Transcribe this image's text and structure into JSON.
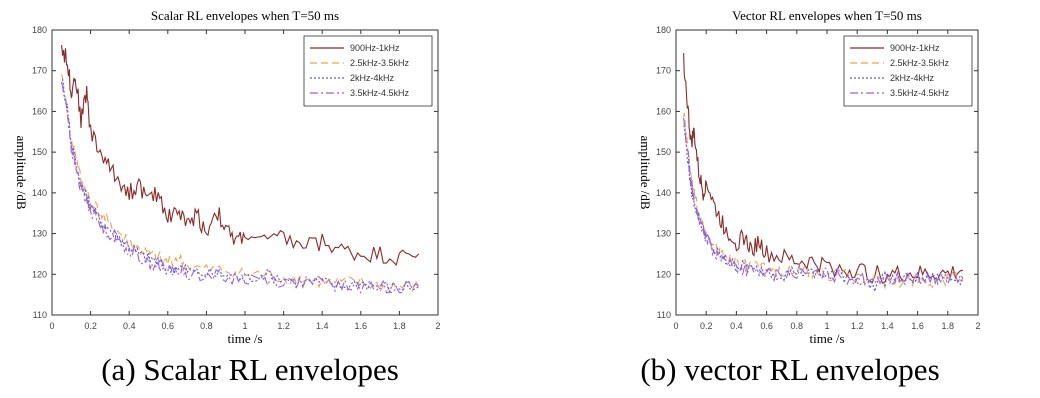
{
  "panels": [
    {
      "caption": "(a) Scalar RL envelopes",
      "chart_data": {
        "type": "line",
        "title": "Scalar RL envelopes when T=50 ms",
        "xlabel": "time /s",
        "ylabel": "amplitude /dB",
        "xlim": [
          0,
          2
        ],
        "ylim": [
          110,
          180
        ],
        "xticks": [
          0,
          0.2,
          0.4,
          0.6,
          0.8,
          1,
          1.2,
          1.4,
          1.6,
          1.8,
          2
        ],
        "yticks": [
          110,
          120,
          130,
          140,
          150,
          160,
          170,
          180
        ],
        "legend_position": "top-right",
        "series": [
          {
            "name": "900Hz-1kHz",
            "color": "#8b2a2a",
            "dash": "solid",
            "x": [
              0.05,
              0.08,
              0.1,
              0.12,
              0.15,
              0.18,
              0.2,
              0.25,
              0.3,
              0.35,
              0.4,
              0.45,
              0.5,
              0.55,
              0.6,
              0.65,
              0.7,
              0.75,
              0.8,
              0.85,
              0.9,
              0.95,
              1.0,
              1.1,
              1.2,
              1.3,
              1.4,
              1.5,
              1.6,
              1.7,
              1.8,
              1.9
            ],
            "y": [
              176,
              172,
              165,
              169,
              158,
              165,
              155,
              150,
              146,
              143,
              140,
              142,
              138,
              140,
              134,
              136,
              132,
              135,
              130,
              136,
              131,
              128,
              130,
              128,
              129,
              127,
              128,
              126,
              125,
              125,
              124,
              125
            ]
          },
          {
            "name": "2.5kHz-3.5kHz",
            "color": "#f0a050",
            "dash": "dashed",
            "x": [
              0.05,
              0.08,
              0.1,
              0.12,
              0.15,
              0.18,
              0.2,
              0.25,
              0.3,
              0.35,
              0.4,
              0.45,
              0.5,
              0.55,
              0.6,
              0.65,
              0.7,
              0.8,
              0.9,
              1.0,
              1.1,
              1.2,
              1.3,
              1.4,
              1.5,
              1.6,
              1.7,
              1.8,
              1.9
            ],
            "y": [
              168,
              160,
              152,
              150,
              143,
              140,
              138,
              135,
              132,
              130,
              128,
              126,
              125,
              124,
              123,
              124,
              122,
              121,
              121,
              120,
              120,
              119,
              119,
              118,
              118,
              118,
              117,
              117,
              117
            ]
          },
          {
            "name": "2kHz-4kHz",
            "color": "#5a5ae6",
            "dash": "dotted",
            "x": [
              0.05,
              0.08,
              0.1,
              0.12,
              0.15,
              0.18,
              0.2,
              0.25,
              0.3,
              0.35,
              0.4,
              0.45,
              0.5,
              0.55,
              0.6,
              0.65,
              0.7,
              0.8,
              0.9,
              1.0,
              1.1,
              1.2,
              1.3,
              1.4,
              1.5,
              1.6,
              1.7,
              1.8,
              1.9
            ],
            "y": [
              168,
              161,
              152,
              148,
              142,
              139,
              137,
              133,
              131,
              129,
              127,
              125,
              124,
              123,
              121,
              122,
              121,
              120,
              120,
              119,
              120,
              119,
              118,
              118,
              117,
              118,
              117,
              117,
              117
            ]
          },
          {
            "name": "3.5kHz-4.5kHz",
            "color": "#9b5fe0",
            "dash": "dashdot",
            "x": [
              0.05,
              0.08,
              0.1,
              0.12,
              0.15,
              0.18,
              0.2,
              0.25,
              0.3,
              0.35,
              0.4,
              0.45,
              0.5,
              0.55,
              0.6,
              0.65,
              0.7,
              0.8,
              0.9,
              1.0,
              1.1,
              1.2,
              1.3,
              1.4,
              1.5,
              1.6,
              1.7,
              1.8,
              1.9
            ],
            "y": [
              167,
              160,
              151,
              147,
              141,
              138,
              136,
              132,
              130,
              128,
              126,
              124,
              123,
              122,
              121,
              121,
              120,
              120,
              119,
              119,
              119,
              118,
              118,
              118,
              117,
              117,
              117,
              117,
              117
            ]
          }
        ]
      }
    },
    {
      "caption": "(b) vector RL envelopes",
      "chart_data": {
        "type": "line",
        "title": "Vector RL envelopes when T=50 ms",
        "xlabel": "time /s",
        "ylabel": "amplitude /dB",
        "xlim": [
          0,
          2
        ],
        "ylim": [
          110,
          180
        ],
        "xticks": [
          0,
          0.2,
          0.4,
          0.6,
          0.8,
          1,
          1.2,
          1.4,
          1.6,
          1.8,
          2
        ],
        "yticks": [
          110,
          120,
          130,
          140,
          150,
          160,
          170,
          180
        ],
        "legend_position": "top-right",
        "series": [
          {
            "name": "900Hz-1kHz",
            "color": "#8b2a2a",
            "dash": "solid",
            "x": [
              0.05,
              0.08,
              0.1,
              0.12,
              0.15,
              0.18,
              0.2,
              0.25,
              0.3,
              0.35,
              0.4,
              0.45,
              0.5,
              0.55,
              0.6,
              0.7,
              0.8,
              0.9,
              1.0,
              1.1,
              1.2,
              1.3,
              1.4,
              1.5,
              1.6,
              1.7,
              1.8,
              1.9
            ],
            "y": [
              173,
              160,
              152,
              155,
              145,
              140,
              143,
              137,
              133,
              130,
              128,
              129,
              126,
              128,
              125,
              124,
              123,
              123,
              122,
              121,
              121,
              120,
              120,
              120,
              120,
              120,
              120,
              121
            ]
          },
          {
            "name": "2.5kHz-3.5kHz",
            "color": "#f0a050",
            "dash": "dashed",
            "x": [
              0.05,
              0.08,
              0.1,
              0.12,
              0.15,
              0.18,
              0.2,
              0.25,
              0.3,
              0.35,
              0.4,
              0.45,
              0.5,
              0.6,
              0.7,
              0.8,
              0.9,
              1.0,
              1.1,
              1.2,
              1.3,
              1.4,
              1.5,
              1.6,
              1.7,
              1.8,
              1.9
            ],
            "y": [
              160,
              150,
              143,
              140,
              135,
              132,
              130,
              127,
              125,
              124,
              123,
              122,
              122,
              121,
              121,
              121,
              120,
              120,
              120,
              119,
              119,
              118,
              118,
              119,
              118,
              119,
              119
            ]
          },
          {
            "name": "2kHz-4kHz",
            "color": "#5a5ae6",
            "dash": "dotted",
            "x": [
              0.05,
              0.08,
              0.1,
              0.12,
              0.15,
              0.18,
              0.2,
              0.25,
              0.3,
              0.35,
              0.4,
              0.45,
              0.5,
              0.6,
              0.7,
              0.8,
              0.9,
              1.0,
              1.1,
              1.2,
              1.3,
              1.4,
              1.5,
              1.6,
              1.7,
              1.8,
              1.9
            ],
            "y": [
              157,
              148,
              141,
              138,
              134,
              131,
              129,
              126,
              124,
              123,
              122,
              122,
              121,
              121,
              120,
              121,
              120,
              120,
              120,
              119,
              117,
              119,
              119,
              119,
              119,
              119,
              119
            ]
          },
          {
            "name": "3.5kHz-4.5kHz",
            "color": "#9b5fe0",
            "dash": "dashdot",
            "x": [
              0.05,
              0.08,
              0.1,
              0.12,
              0.15,
              0.18,
              0.2,
              0.25,
              0.3,
              0.35,
              0.4,
              0.45,
              0.5,
              0.6,
              0.7,
              0.8,
              0.9,
              1.0,
              1.1,
              1.2,
              1.3,
              1.4,
              1.5,
              1.6,
              1.7,
              1.8,
              1.9
            ],
            "y": [
              158,
              149,
              142,
              138,
              134,
              131,
              129,
              126,
              124,
              123,
              122,
              121,
              121,
              120,
              120,
              120,
              120,
              120,
              119,
              119,
              119,
              119,
              119,
              119,
              119,
              119,
              119
            ]
          }
        ]
      }
    }
  ]
}
